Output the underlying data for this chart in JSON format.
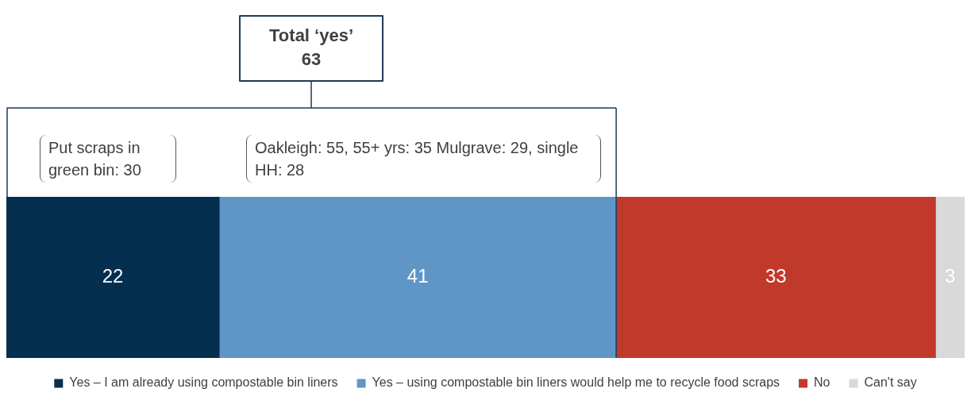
{
  "chart_data": {
    "type": "bar",
    "orientation": "horizontal",
    "stacked": true,
    "categories": [
      null
    ],
    "series": [
      {
        "name": "Yes – I am already using compostable bin liners",
        "color": "#052f4f",
        "values": [
          22
        ]
      },
      {
        "name": "Yes – using compostable bin liners would help me to recycle food scraps",
        "color": "#6096c6",
        "values": [
          41
        ]
      },
      {
        "name": "No",
        "color": "#c0392b",
        "values": [
          33
        ]
      },
      {
        "name": "Can't say",
        "color": "#d9d9d9",
        "values": [
          3
        ]
      }
    ],
    "data_labels": true,
    "legend": "bottom",
    "tick_labels": false,
    "ref_lines": [
      {
        "axis": "x",
        "value": 63,
        "label": "Total ‘yes’ 63",
        "color": "#1f3a55"
      }
    ],
    "annotations": [
      "Put scraps in green bin: 30",
      "Oakleigh: 55, 55+ yrs: 35  Mulgrave: 29, single HH: 28"
    ]
  }
}
